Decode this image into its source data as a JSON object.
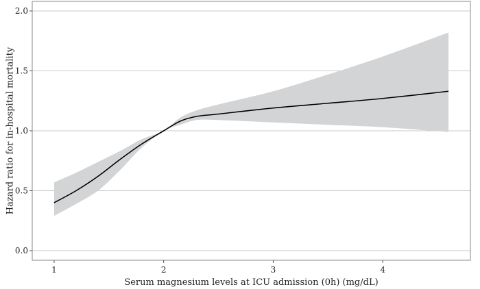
{
  "chart_data": {
    "type": "line",
    "title": "",
    "xlabel": "Serum magnesium levels at ICU admission (0h) (mg/dL)",
    "ylabel": "Hazard ratio for in-hospital mortality",
    "xlim": [
      0.8,
      4.8
    ],
    "ylim": [
      -0.08,
      2.08
    ],
    "x_ticks": [
      1,
      2,
      3,
      4
    ],
    "y_ticks": [
      0.0,
      0.5,
      1.0,
      1.5,
      2.0
    ],
    "x_tick_labels": [
      "1",
      "2",
      "3",
      "4"
    ],
    "y_tick_labels": [
      "0.0",
      "0.5",
      "1.0",
      "1.5",
      "2.0"
    ],
    "grid": "horizontal",
    "series": [
      {
        "points": [
          {
            "x": 1.0,
            "y": 0.4,
            "lower": 0.29,
            "upper": 0.57
          },
          {
            "x": 1.2,
            "y": 0.5,
            "lower": 0.39,
            "upper": 0.65
          },
          {
            "x": 1.4,
            "y": 0.62,
            "lower": 0.5,
            "upper": 0.74
          },
          {
            "x": 1.6,
            "y": 0.76,
            "lower": 0.67,
            "upper": 0.83
          },
          {
            "x": 1.8,
            "y": 0.89,
            "lower": 0.86,
            "upper": 0.93
          },
          {
            "x": 2.0,
            "y": 1.0,
            "lower": 1.0,
            "upper": 1.0
          },
          {
            "x": 2.15,
            "y": 1.08,
            "lower": 1.05,
            "upper": 1.11
          },
          {
            "x": 2.3,
            "y": 1.12,
            "lower": 1.09,
            "upper": 1.17
          },
          {
            "x": 2.5,
            "y": 1.14,
            "lower": 1.09,
            "upper": 1.22
          },
          {
            "x": 3.0,
            "y": 1.19,
            "lower": 1.07,
            "upper": 1.33
          },
          {
            "x": 3.5,
            "y": 1.23,
            "lower": 1.05,
            "upper": 1.47
          },
          {
            "x": 4.0,
            "y": 1.27,
            "lower": 1.03,
            "upper": 1.62
          },
          {
            "x": 4.6,
            "y": 1.33,
            "lower": 0.99,
            "upper": 1.82
          }
        ],
        "line_color": "#000000",
        "ci_color": "#d3d4d6"
      }
    ]
  }
}
